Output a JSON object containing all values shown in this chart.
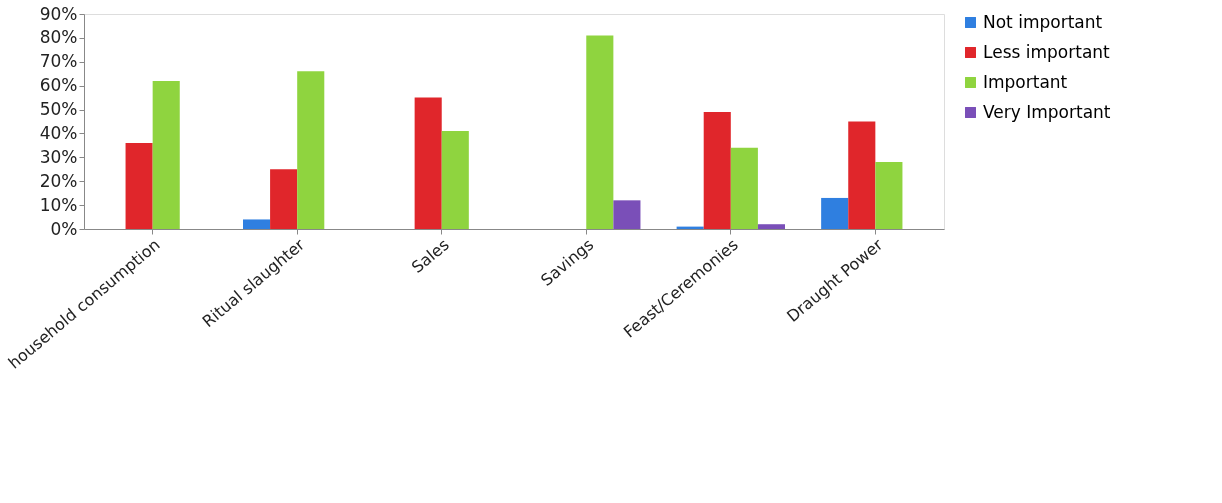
{
  "chart_data": {
    "type": "bar",
    "categories": [
      "household consumption",
      "Ritual slaughter",
      "Sales",
      "Savings",
      "Feast/Ceremonies",
      "Draught Power"
    ],
    "series": [
      {
        "name": "Not important",
        "color": "#2f7fe0",
        "values": [
          0,
          4,
          0,
          0,
          1,
          13
        ]
      },
      {
        "name": "Less important",
        "color": "#e0262b",
        "values": [
          36,
          25,
          55,
          0,
          49,
          45
        ]
      },
      {
        "name": "Important",
        "color": "#8fd43f",
        "values": [
          62,
          66,
          41,
          81,
          34,
          28
        ]
      },
      {
        "name": "Very Important",
        "color": "#7a4fb8",
        "values": [
          0,
          0,
          0,
          12,
          2,
          0
        ]
      }
    ],
    "ylim": [
      0,
      90
    ],
    "yticks": [
      {
        "value": 0,
        "label": "0%"
      },
      {
        "value": 10,
        "label": "10%"
      },
      {
        "value": 20,
        "label": "20%"
      },
      {
        "value": 30,
        "label": "30%"
      },
      {
        "value": 40,
        "label": "40%"
      },
      {
        "value": 50,
        "label": "50%"
      },
      {
        "value": 60,
        "label": "60%"
      },
      {
        "value": 70,
        "label": "70%"
      },
      {
        "value": 80,
        "label": "80%"
      },
      {
        "value": 90,
        "label": "90%"
      }
    ],
    "grid": false,
    "legend": "right"
  }
}
